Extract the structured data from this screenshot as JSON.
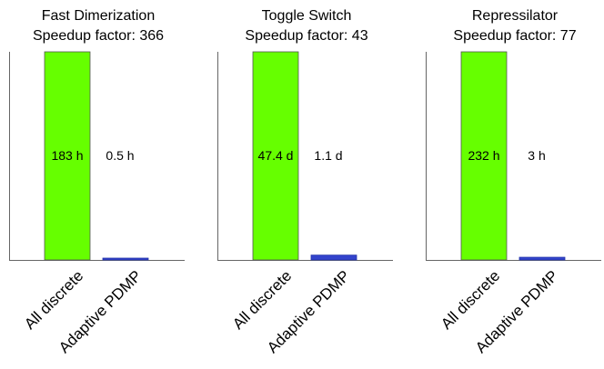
{
  "chart_data": [
    {
      "type": "bar",
      "title": "Fast Dimerization",
      "subtitle": "Speedup factor: 366",
      "categories": [
        "All discrete",
        "Adaptive PDMP"
      ],
      "values": [
        183,
        0.5
      ],
      "unit": "h",
      "data_labels": [
        "183 h",
        "0.5 h"
      ],
      "colors": [
        "#66ff00",
        "#3344cc"
      ],
      "ylim": [
        0,
        183
      ]
    },
    {
      "type": "bar",
      "title": "Toggle Switch",
      "subtitle": "Speedup factor: 43",
      "categories": [
        "All discrete",
        "Adaptive PDMP"
      ],
      "values": [
        47.4,
        1.1
      ],
      "unit": "d",
      "data_labels": [
        "47.4 d",
        "1.1 d"
      ],
      "colors": [
        "#66ff00",
        "#3344cc"
      ],
      "ylim": [
        0,
        47.4
      ]
    },
    {
      "type": "bar",
      "title": "Repressilator",
      "subtitle": "Speedup factor: 77",
      "categories": [
        "All discrete",
        "Adaptive PDMP"
      ],
      "values": [
        232,
        3
      ],
      "unit": "h",
      "data_labels": [
        "232 h",
        "3 h"
      ],
      "colors": [
        "#66ff00",
        "#3344cc"
      ],
      "ylim": [
        0,
        232
      ]
    }
  ]
}
